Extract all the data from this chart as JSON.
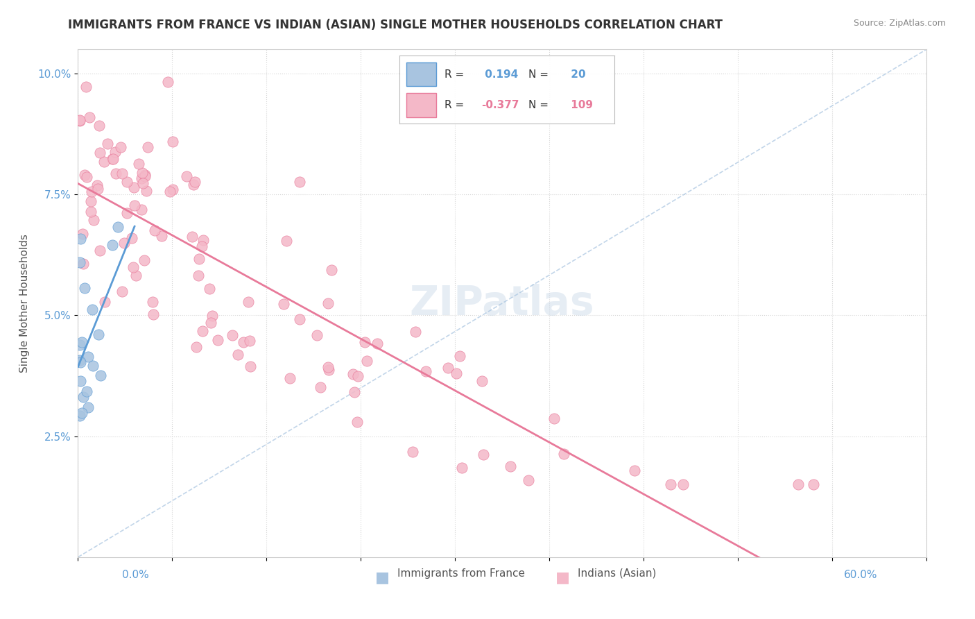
{
  "title": "IMMIGRANTS FROM FRANCE VS INDIAN (ASIAN) SINGLE MOTHER HOUSEHOLDS CORRELATION CHART",
  "source": "Source: ZipAtlas.com",
  "ylabel": "Single Mother Households",
  "yticks": [
    0.025,
    0.05,
    0.075,
    0.1
  ],
  "ytick_labels": [
    "2.5%",
    "5.0%",
    "7.5%",
    "10.0%"
  ],
  "xmin": 0.0,
  "xmax": 0.6,
  "ymin": 0.0,
  "ymax": 0.105,
  "r_france": 0.194,
  "n_france": 20,
  "r_indian": -0.377,
  "n_indian": 109,
  "color_france": "#a8c4e0",
  "color_france_line": "#5b9bd5",
  "color_indian": "#f4b8c8",
  "color_indian_line": "#e87a9a",
  "color_dashed": "#a8c4e0"
}
